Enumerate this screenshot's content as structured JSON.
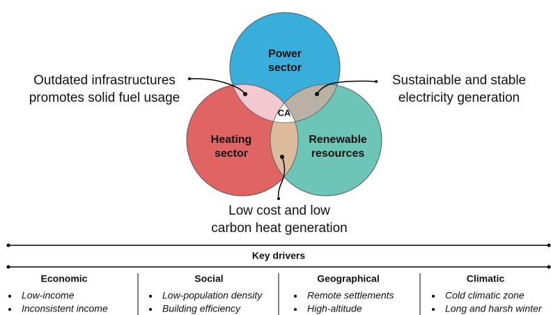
{
  "venn": {
    "sets": [
      {
        "lines": [
          "Power",
          "sector"
        ]
      },
      {
        "lines": [
          "Heating",
          "sector"
        ]
      },
      {
        "lines": [
          "Renewable",
          "resources"
        ]
      }
    ],
    "center": "CA",
    "annotations": [
      {
        "lines": [
          "Outdated infrastructures",
          "promotes solid fuel usage"
        ]
      },
      {
        "lines": [
          "Sustainable and stable",
          "electricity generation"
        ]
      },
      {
        "lines": [
          "Low cost and low",
          "carbon heat generation"
        ]
      }
    ]
  },
  "key_drivers": {
    "title": "Key drivers",
    "columns": [
      {
        "header": "Economic",
        "items": [
          "Low-income",
          "Inconsistent income"
        ]
      },
      {
        "header": "Social",
        "items": [
          "Low-population density",
          "Building efficiency"
        ]
      },
      {
        "header": "Geographical",
        "items": [
          "Remote settlements",
          "High-altitude"
        ]
      },
      {
        "header": "Climatic",
        "items": [
          "Cold climatic zone",
          "Long and harsh winter"
        ]
      }
    ]
  }
}
